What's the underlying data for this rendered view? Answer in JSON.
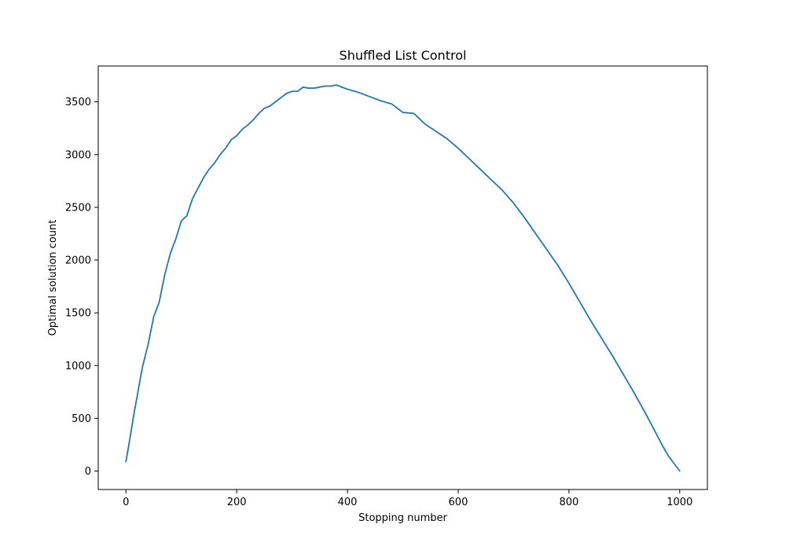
{
  "chart_data": {
    "type": "line",
    "title": "Shuffled List Control",
    "xlabel": "Stopping number",
    "ylabel": "Optimal solution count",
    "xlim": [
      -50,
      1050
    ],
    "ylim": [
      -175,
      3840
    ],
    "xticks": [
      0,
      200,
      400,
      600,
      800,
      1000
    ],
    "xtick_labels": [
      "0",
      "200",
      "400",
      "600",
      "800",
      "1000"
    ],
    "yticks": [
      0,
      500,
      1000,
      1500,
      2000,
      2500,
      3000,
      3500
    ],
    "ytick_labels": [
      "0",
      "500",
      "1000",
      "1500",
      "2000",
      "2500",
      "3000",
      "3500"
    ],
    "grid": false,
    "series": [
      {
        "color": "#1f77b4",
        "x": [
          0,
          5,
          10,
          15,
          20,
          25,
          30,
          40,
          50,
          60,
          70,
          80,
          90,
          100,
          110,
          120,
          130,
          140,
          150,
          160,
          170,
          180,
          190,
          200,
          210,
          220,
          230,
          240,
          250,
          260,
          270,
          280,
          290,
          300,
          310,
          320,
          330,
          340,
          350,
          360,
          370,
          380,
          390,
          400,
          420,
          440,
          460,
          480,
          500,
          520,
          540,
          560,
          580,
          600,
          620,
          640,
          660,
          680,
          700,
          720,
          740,
          760,
          780,
          800,
          820,
          840,
          860,
          880,
          900,
          920,
          940,
          960,
          970,
          980,
          990,
          1000
        ],
        "y": [
          90,
          240,
          400,
          560,
          700,
          850,
          990,
          1200,
          1460,
          1600,
          1860,
          2060,
          2200,
          2370,
          2420,
          2580,
          2680,
          2780,
          2860,
          2920,
          3000,
          3060,
          3140,
          3180,
          3240,
          3280,
          3330,
          3390,
          3440,
          3460,
          3500,
          3540,
          3580,
          3600,
          3600,
          3640,
          3630,
          3630,
          3640,
          3650,
          3650,
          3660,
          3640,
          3620,
          3590,
          3550,
          3510,
          3480,
          3400,
          3390,
          3290,
          3220,
          3150,
          3060,
          2960,
          2860,
          2760,
          2660,
          2540,
          2400,
          2250,
          2100,
          1950,
          1780,
          1600,
          1420,
          1250,
          1080,
          900,
          720,
          530,
          330,
          230,
          140,
          70,
          0
        ]
      }
    ]
  }
}
